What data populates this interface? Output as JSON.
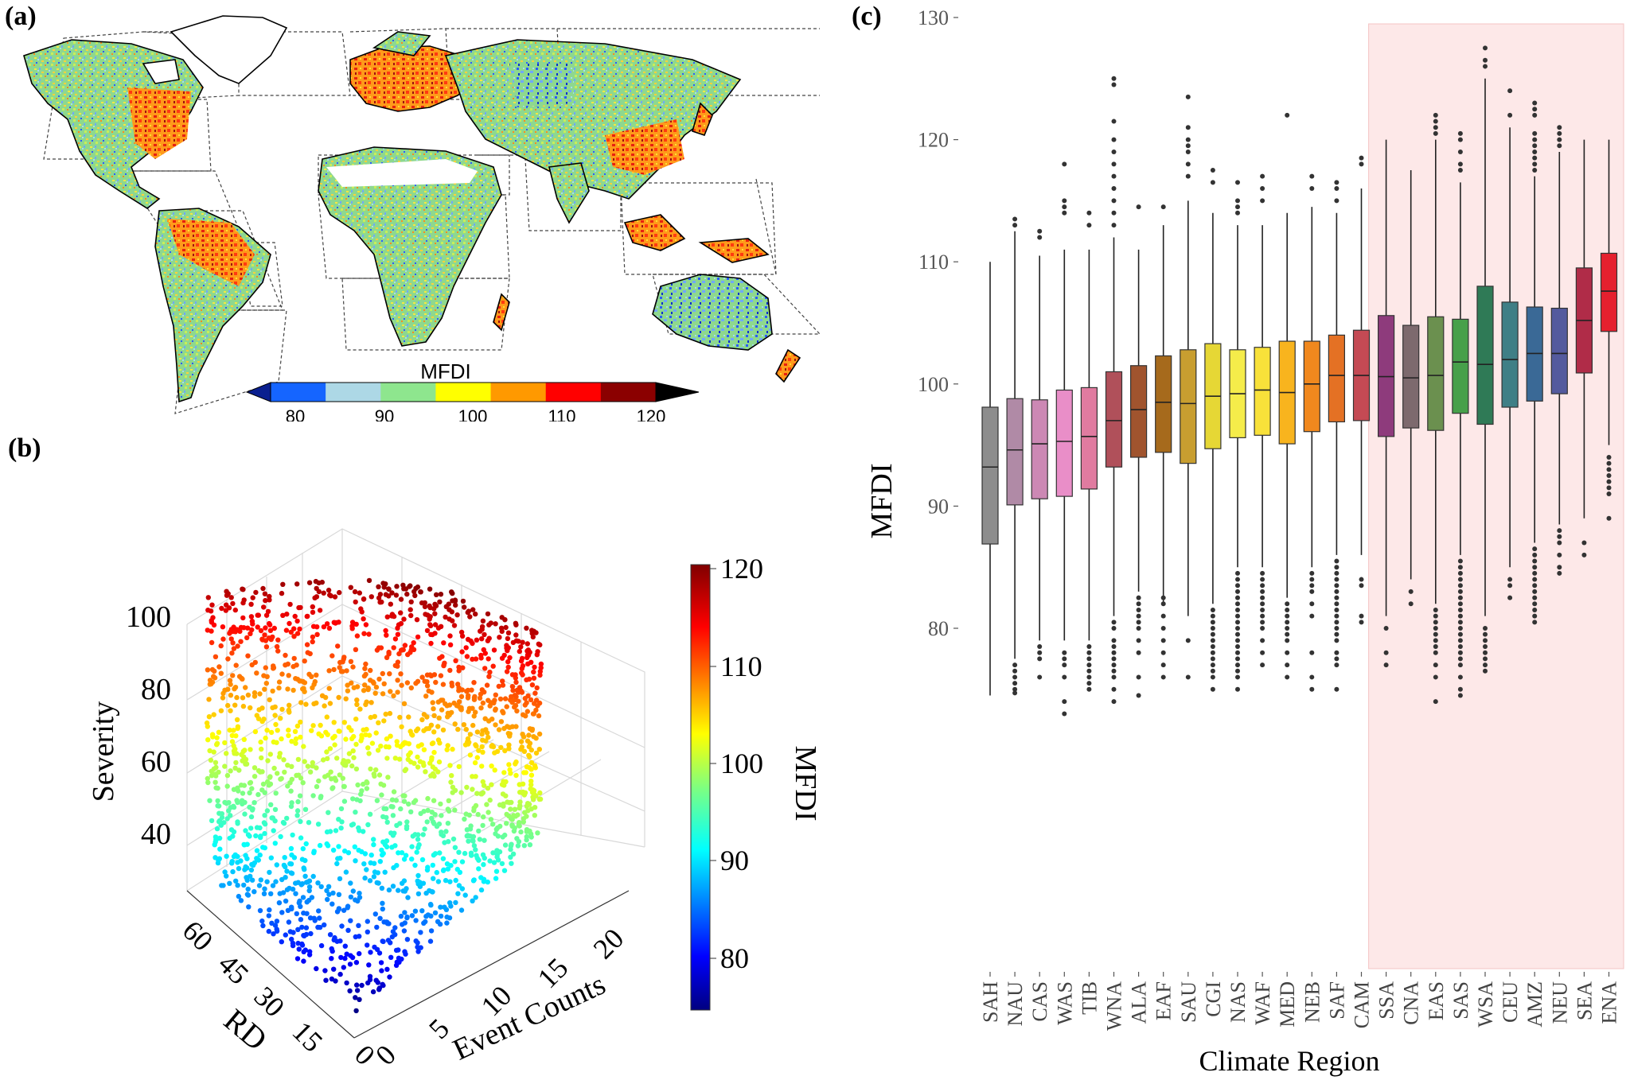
{
  "panels": {
    "a": {
      "label": "(a)",
      "colorbar_title": "MFDI",
      "colorbar_ticks": [
        "80",
        "90",
        "100",
        "110",
        "120"
      ],
      "colorbar_colors": [
        "#0a1f8f",
        "#1565ff",
        "#add8e6",
        "#8ee68e",
        "#ffff00",
        "#ff9900",
        "#ff0000",
        "#8b0000",
        "#000000"
      ]
    },
    "b": {
      "label": "(b)"
    },
    "c": {
      "label": "(c)"
    }
  },
  "chart_data": [
    {
      "type": "scatter",
      "panel": "b",
      "title": "",
      "zlabel": "Severity",
      "xlabel": "Event Counts",
      "ylabel": "RD",
      "z_ticks": [
        "40",
        "60",
        "80",
        "100"
      ],
      "x_ticks": [
        "0",
        "5",
        "10",
        "15",
        "20"
      ],
      "y_ticks": [
        "0",
        "15",
        "30",
        "45",
        "60"
      ],
      "colorbar": {
        "label": "MFDI",
        "ticks": [
          "80",
          "90",
          "100",
          "110",
          "120"
        ],
        "range": [
          73,
          120
        ]
      },
      "grid": true
    },
    {
      "type": "box",
      "panel": "c",
      "title": "",
      "xlabel": "Climate Region",
      "ylabel": "MFDI",
      "ylim": [
        70,
        130
      ],
      "yticks": [
        "80",
        "90",
        "100",
        "110",
        "120",
        "130"
      ],
      "highlight": {
        "from": "SSA",
        "to": "ENA",
        "color": "#fde8e8"
      },
      "categories": [
        "SAH",
        "NAU",
        "CAS",
        "WAS",
        "TIB",
        "WNA",
        "ALA",
        "EAF",
        "SAU",
        "CGI",
        "NAS",
        "WAF",
        "MED",
        "NEB",
        "SAF",
        "CAM",
        "SSA",
        "CNA",
        "EAS",
        "SAS",
        "WSA",
        "CEU",
        "AMZ",
        "NEU",
        "SEA",
        "ENA"
      ],
      "boxes": [
        {
          "region": "SAH",
          "min": 74.5,
          "q1": 86.9,
          "median": 93.2,
          "q3": 98.1,
          "max": 110.0,
          "color": "#8d8d8d",
          "out_low": [],
          "out_high": []
        },
        {
          "region": "NAU",
          "min": 77.5,
          "q1": 90.1,
          "median": 94.6,
          "q3": 98.8,
          "max": 112.5,
          "color": "#b08aa6",
          "out_low": [
            77,
            76.5,
            76,
            75.5,
            75,
            74.7
          ],
          "out_high": [
            113,
            113.5
          ]
        },
        {
          "region": "CAS",
          "min": 79.0,
          "q1": 90.6,
          "median": 95.1,
          "q3": 98.7,
          "max": 110.5,
          "color": "#cc88b4",
          "out_low": [
            78.5,
            78,
            77.5,
            76
          ],
          "out_high": [
            112,
            112.5
          ]
        },
        {
          "region": "WAS",
          "min": 79.0,
          "q1": 90.8,
          "median": 95.3,
          "q3": 99.5,
          "max": 111.0,
          "color": "#e98ec8",
          "out_low": [
            78,
            77.5,
            77,
            76,
            74,
            73
          ],
          "out_high": [
            114,
            114.5,
            115,
            118
          ]
        },
        {
          "region": "TIB",
          "min": 79.0,
          "q1": 91.4,
          "median": 95.7,
          "q3": 99.7,
          "max": 111.0,
          "color": "#e07ba0",
          "out_low": [
            78.5,
            78,
            77.5,
            77,
            76.5,
            76,
            75.5,
            75
          ],
          "out_high": [
            113,
            114
          ]
        },
        {
          "region": "WNA",
          "min": 81.0,
          "q1": 93.2,
          "median": 97.0,
          "q3": 101.0,
          "max": 112.0,
          "color": "#b0505a",
          "out_low": [
            80.5,
            80,
            79,
            78.5,
            78,
            77.5,
            77,
            76.5,
            76,
            75,
            74
          ],
          "out_high": [
            113,
            114,
            115,
            116,
            117,
            118,
            119,
            120,
            121.5,
            124.5,
            125
          ]
        },
        {
          "region": "ALA",
          "min": 83.0,
          "q1": 94.0,
          "median": 97.9,
          "q3": 101.5,
          "max": 111.0,
          "color": "#a0542e",
          "out_low": [
            82.5,
            82,
            81.5,
            81,
            80.5,
            80,
            79,
            78,
            76,
            74.5
          ],
          "out_high": [
            114.5
          ]
        },
        {
          "region": "EAF",
          "min": 82.0,
          "q1": 94.4,
          "median": 98.5,
          "q3": 102.3,
          "max": 113.0,
          "color": "#a66a1c",
          "out_low": [
            82.5,
            82,
            81,
            80,
            79,
            78,
            77,
            76
          ],
          "out_high": [
            114.5
          ]
        },
        {
          "region": "SAU",
          "min": 81.0,
          "q1": 93.5,
          "median": 98.4,
          "q3": 102.8,
          "max": 115.0,
          "color": "#c89e30",
          "out_low": [
            79,
            76
          ],
          "out_high": [
            117,
            118,
            119,
            119.5,
            120,
            121,
            123.5
          ]
        },
        {
          "region": "CGI",
          "min": 82.0,
          "q1": 94.7,
          "median": 99.0,
          "q3": 103.3,
          "max": 114.0,
          "color": "#e6d735",
          "out_low": [
            81.5,
            81,
            80.5,
            80,
            79.5,
            79,
            78.5,
            78,
            77.5,
            77,
            76.5,
            76,
            75
          ],
          "out_high": [
            116.5,
            117.5
          ]
        },
        {
          "region": "NAS",
          "min": 85.0,
          "q1": 95.6,
          "median": 99.2,
          "q3": 102.8,
          "max": 113.0,
          "color": "#f5ec4a",
          "out_low": [
            84.5,
            84,
            83.5,
            83,
            82.5,
            82,
            81.5,
            81,
            80.5,
            80,
            79.5,
            79,
            78.5,
            78,
            77.5,
            77,
            76.5,
            76,
            75
          ],
          "out_high": [
            114,
            114.5,
            115,
            116.5
          ]
        },
        {
          "region": "WAF",
          "min": 85.0,
          "q1": 95.8,
          "median": 99.5,
          "q3": 103.0,
          "max": 113.0,
          "color": "#f8e13a",
          "out_low": [
            84.5,
            84,
            83.5,
            83,
            82.5,
            82,
            81.5,
            81,
            80.5,
            80,
            79,
            78,
            77
          ],
          "out_high": [
            115,
            116,
            117
          ]
        },
        {
          "region": "MED",
          "min": 82.5,
          "q1": 95.1,
          "median": 99.3,
          "q3": 103.5,
          "max": 114.0,
          "color": "#f8b41e",
          "out_low": [
            82,
            81.5,
            81,
            80.5,
            80,
            79.5,
            79,
            78,
            77,
            76
          ],
          "out_high": [
            122
          ]
        },
        {
          "region": "NEB",
          "min": 85.0,
          "q1": 96.1,
          "median": 100.0,
          "q3": 103.5,
          "max": 114.5,
          "color": "#f0881e",
          "out_low": [
            84.5,
            84,
            83.5,
            83,
            82,
            81,
            78,
            76,
            75
          ],
          "out_high": [
            116,
            117
          ]
        },
        {
          "region": "SAF",
          "min": 86.0,
          "q1": 96.9,
          "median": 100.7,
          "q3": 104.0,
          "max": 114.0,
          "color": "#e47124",
          "out_low": [
            85.5,
            85,
            84.5,
            84,
            83.5,
            83,
            82.5,
            82,
            81.5,
            81,
            80.5,
            80,
            79.5,
            79,
            78,
            77.5,
            77,
            75
          ],
          "out_high": [
            115,
            116,
            116.5
          ]
        },
        {
          "region": "CAM",
          "min": 86.0,
          "q1": 97.0,
          "median": 100.7,
          "q3": 104.4,
          "max": 116.0,
          "color": "#c44a54",
          "out_low": [
            84,
            83.5,
            81,
            80.5
          ],
          "out_high": [
            118,
            118.5
          ]
        },
        {
          "region": "SSA",
          "min": 81.0,
          "q1": 95.7,
          "median": 100.6,
          "q3": 105.6,
          "max": 120.0,
          "color": "#8e3b7c",
          "out_low": [
            80,
            78,
            77
          ],
          "out_high": []
        },
        {
          "region": "CNA",
          "min": 84.0,
          "q1": 96.4,
          "median": 100.5,
          "q3": 104.8,
          "max": 117.5,
          "color": "#7d6a6e",
          "out_low": [
            83,
            82
          ],
          "out_high": []
        },
        {
          "region": "EAS",
          "min": 82.0,
          "q1": 96.2,
          "median": 100.7,
          "q3": 105.5,
          "max": 120.0,
          "color": "#6b904f",
          "out_low": [
            81.5,
            81,
            80.5,
            80,
            79.5,
            79,
            78.5,
            78,
            77,
            76,
            74
          ],
          "out_high": [
            120.5,
            121,
            121.5,
            122
          ]
        },
        {
          "region": "SAS",
          "min": 86.0,
          "q1": 97.6,
          "median": 101.8,
          "q3": 105.3,
          "max": 116.5,
          "color": "#47a04a",
          "out_low": [
            85.5,
            85,
            84.5,
            84,
            83.5,
            83,
            82.5,
            82,
            81.5,
            81,
            80.5,
            80,
            79.5,
            79,
            78.5,
            78,
            77.5,
            77,
            76,
            75,
            74.5
          ],
          "out_high": [
            117.5,
            118,
            119,
            120,
            120.5
          ]
        },
        {
          "region": "WSA",
          "min": 81.0,
          "q1": 96.7,
          "median": 101.6,
          "q3": 108.0,
          "max": 125.0,
          "color": "#2f7a56",
          "out_low": [
            80,
            79.5,
            79,
            78.5,
            78,
            77.5,
            77,
            76.5
          ],
          "out_high": [
            126,
            126.5,
            127.5
          ]
        },
        {
          "region": "CEU",
          "min": 85.0,
          "q1": 98.1,
          "median": 102.0,
          "q3": 106.7,
          "max": 121.0,
          "color": "#3f7f86",
          "out_low": [
            84,
            83.5,
            82.5
          ],
          "out_high": [
            122,
            124
          ]
        },
        {
          "region": "AMZ",
          "min": 87.0,
          "q1": 98.6,
          "median": 102.5,
          "q3": 106.3,
          "max": 117.0,
          "color": "#3a6996",
          "out_low": [
            86.5,
            86,
            85.5,
            85,
            84.5,
            84,
            83.5,
            83,
            82.5,
            82,
            81.5,
            81,
            80.5
          ],
          "out_high": [
            117.5,
            118,
            118.5,
            119,
            119.5,
            120,
            120.5,
            122,
            122.5,
            123
          ]
        },
        {
          "region": "NEU",
          "min": 88.5,
          "q1": 99.2,
          "median": 102.5,
          "q3": 106.2,
          "max": 119.0,
          "color": "#545a9e",
          "out_low": [
            88,
            87.5,
            87,
            86,
            85,
            84.5
          ],
          "out_high": [
            119.5,
            120,
            120.5,
            121
          ]
        },
        {
          "region": "SEA",
          "min": 89.0,
          "q1": 100.9,
          "median": 105.2,
          "q3": 109.5,
          "max": 120.0,
          "color": "#b02c48",
          "out_low": [
            87,
            86
          ],
          "out_high": []
        },
        {
          "region": "ENA",
          "min": 95.0,
          "q1": 104.3,
          "median": 107.6,
          "q3": 110.7,
          "max": 120.0,
          "color": "#e5202e",
          "out_low": [
            94,
            93.5,
            93,
            92.5,
            92,
            91.5,
            91,
            89
          ],
          "out_high": []
        }
      ]
    }
  ]
}
